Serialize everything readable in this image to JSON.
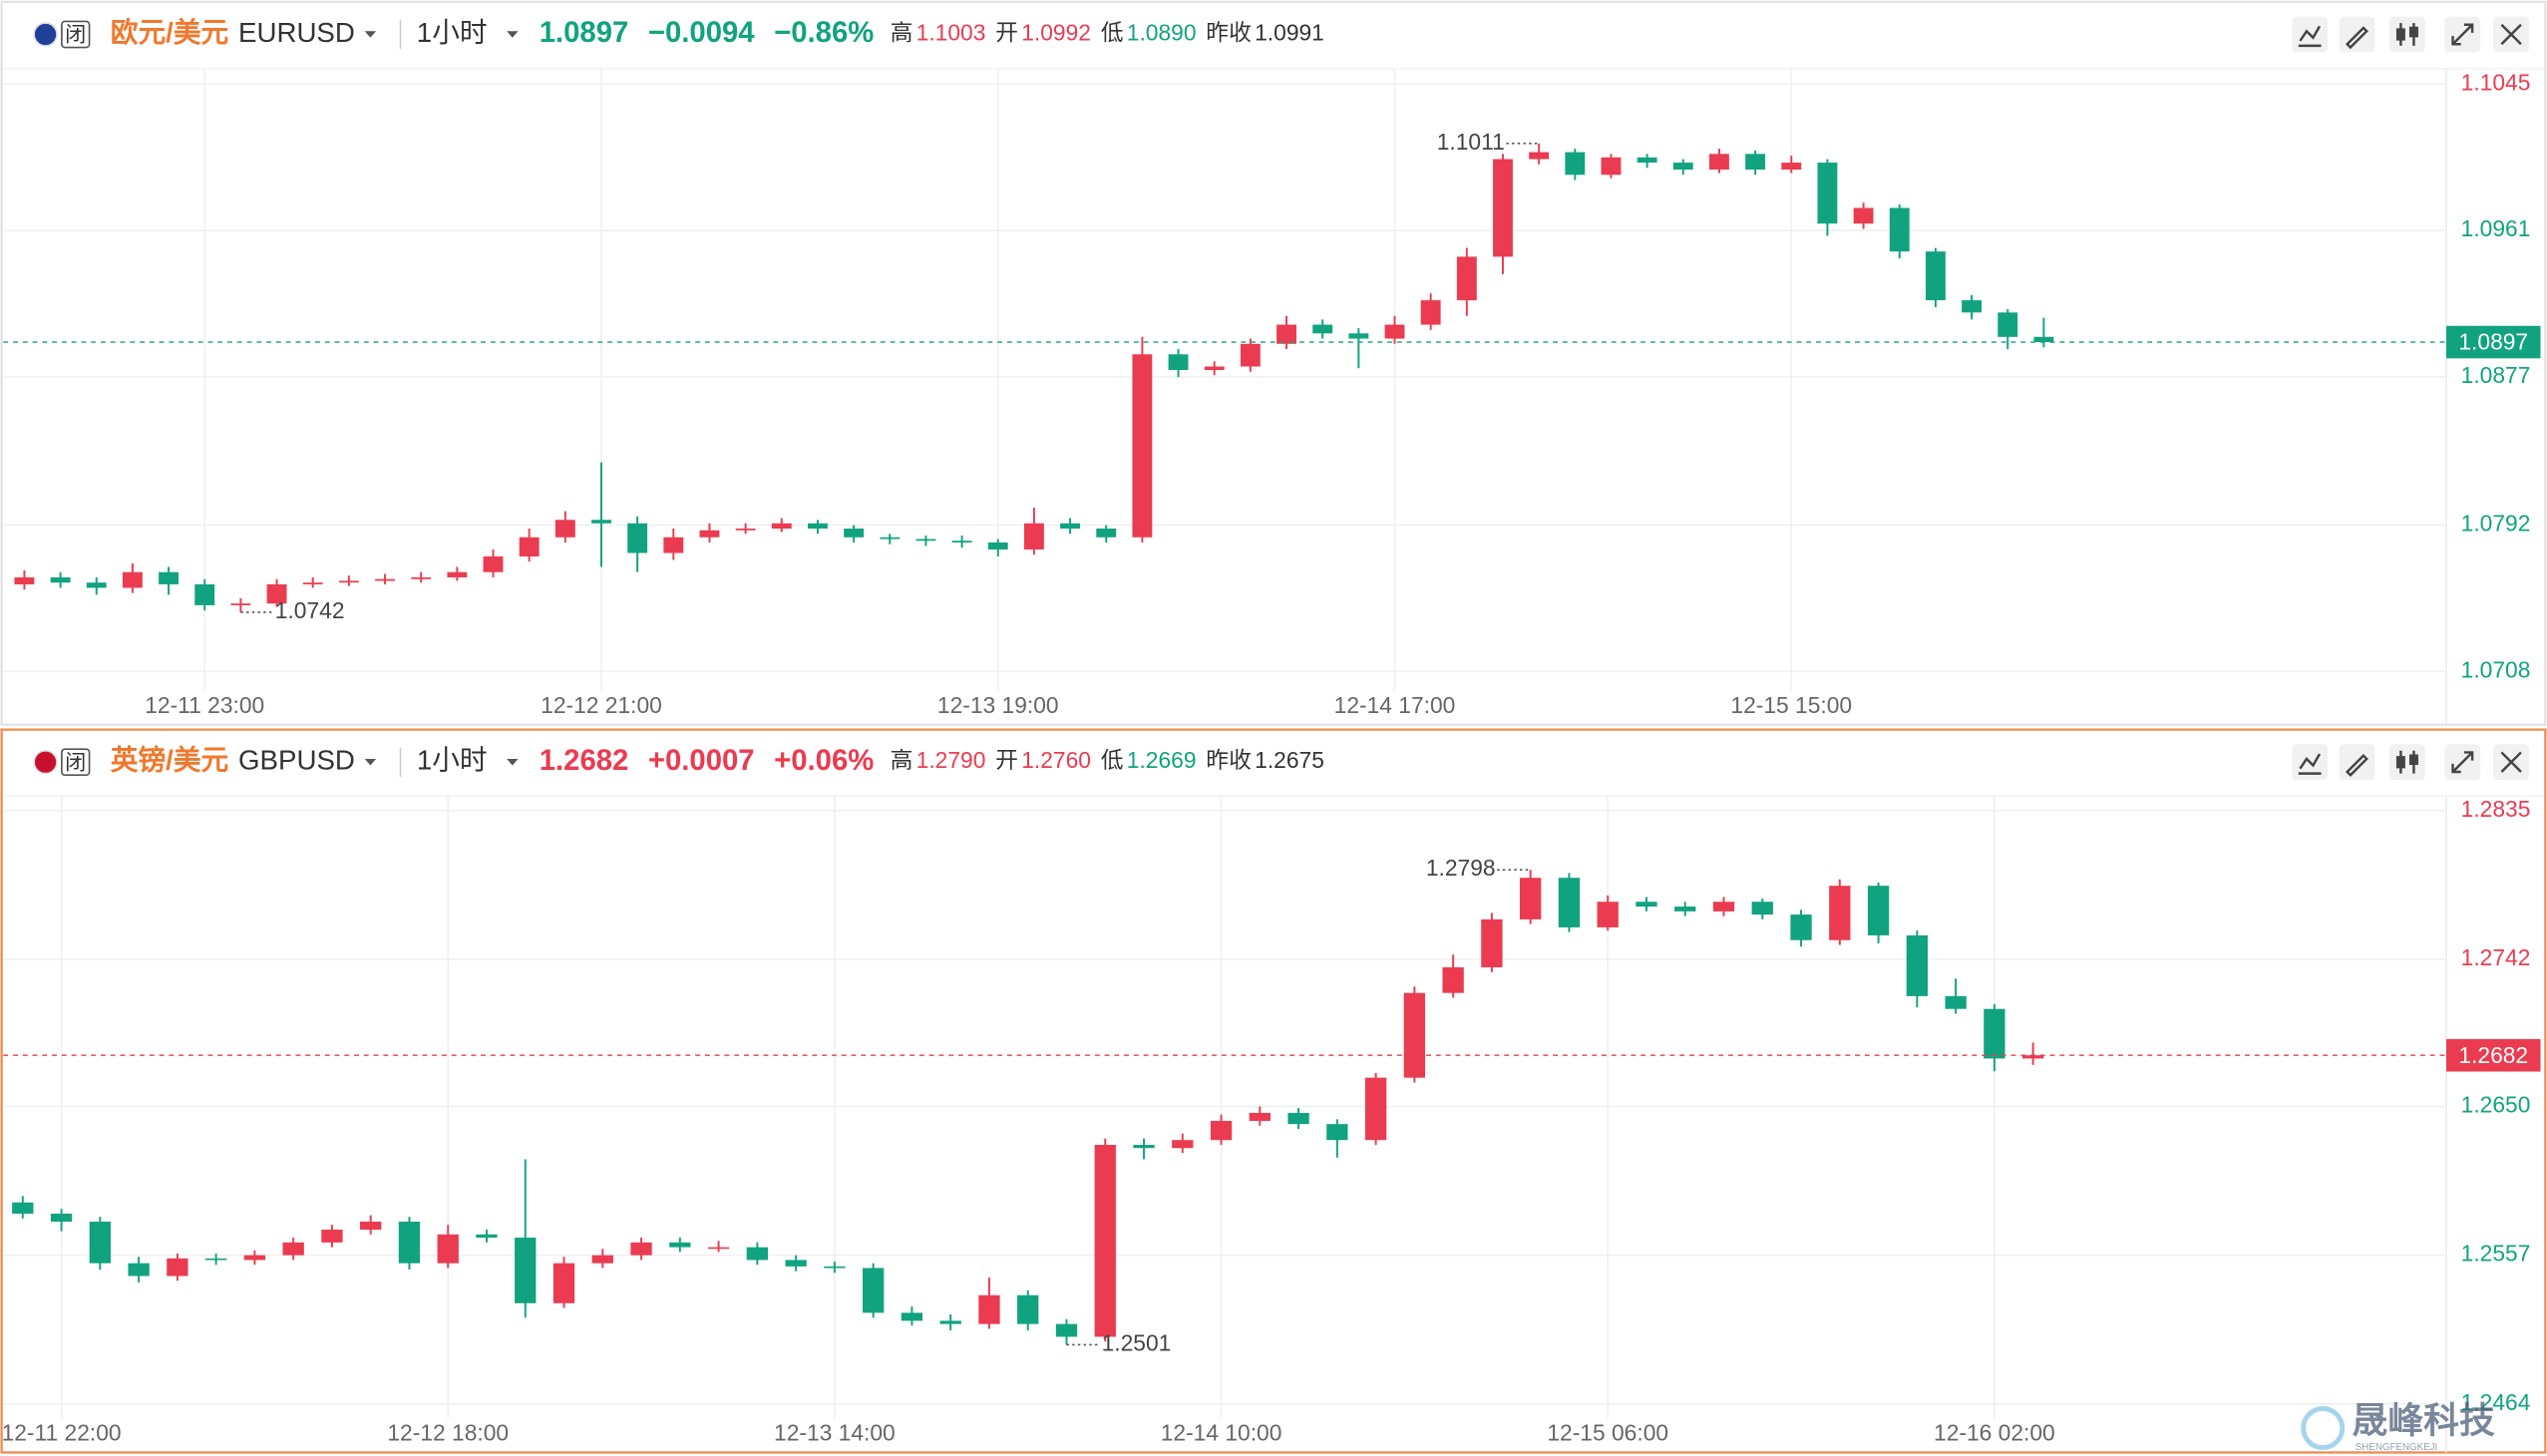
{
  "chart_data": [
    {
      "type": "candlestick",
      "status": "闭",
      "name": "欧元/美元",
      "symbol": "EURUSD",
      "interval": "1小时",
      "change": "−0.0094",
      "change_pct": "−0.86%",
      "trend_color": "#11a37f",
      "up_color": "#eb3b50",
      "down_color": "#11a37f",
      "grid": true,
      "stats": [
        {
          "label": "高",
          "value": 1.1003,
          "color": "#eb3b50"
        },
        {
          "label": "开",
          "value": 1.0992,
          "color": "#eb3b50"
        },
        {
          "label": "低",
          "value": {
            "value": 1.089,
            "label": "1.0890"
          },
          "color": "#11a37f"
        },
        {
          "label": "昨收",
          "value": 1.0991,
          "color": "#333333"
        }
      ],
      "categories": [
        null,
        null,
        null,
        null,
        null,
        "12-11 23:00",
        null,
        null,
        null,
        null,
        null,
        null,
        null,
        null,
        null,
        null,
        "12-12 21:00",
        null,
        null,
        null,
        null,
        null,
        null,
        null,
        null,
        null,
        null,
        "12-13 19:00",
        null,
        null,
        null,
        null,
        null,
        null,
        null,
        null,
        null,
        null,
        "12-14 17:00",
        null,
        null,
        null,
        null,
        null,
        null,
        null,
        null,
        null,
        null,
        "12-15 15:00",
        null,
        null,
        null,
        null,
        null,
        null,
        null
      ],
      "open": [
        1.0758,
        1.0762,
        1.0759,
        1.0756,
        1.0765,
        1.0758,
        1.0746,
        1.0747,
        1.0758,
        1.0759,
        1.076,
        1.0761,
        1.0762,
        1.0765,
        1.0774,
        1.0785,
        1.0795,
        1.0793,
        1.0776,
        1.0785,
        1.0789,
        1.079,
        1.0793,
        1.079,
        1.0785,
        1.0784,
        1.0783,
        1.0782,
        1.0778,
        1.0793,
        1.079,
        1.0785,
        1.089,
        1.0881,
        1.0883,
        1.0896,
        1.0907,
        1.0902,
        1.0899,
        1.0907,
        1.0921,
        1.0946,
        1.1002,
        1.1006,
        1.0993,
        1.1003,
        1.1,
        1.0996,
        1.1005,
        1.0996,
        1.1,
        1.0965,
        1.0974,
        1.0949,
        1.0921,
        1.0914,
        1.09
      ],
      "high": [
        1.0766,
        1.0765,
        1.0762,
        1.077,
        1.0768,
        1.0761,
        1.075,
        1.0761,
        1.0762,
        1.0763,
        1.0764,
        1.0765,
        1.0768,
        1.0778,
        1.079,
        1.08,
        1.0828,
        1.0797,
        1.079,
        1.0793,
        1.0793,
        1.0796,
        1.0795,
        1.0792,
        1.0787,
        1.0786,
        1.0786,
        1.0784,
        1.0802,
        1.0796,
        1.0792,
        1.09,
        1.0893,
        1.0886,
        1.0899,
        1.0912,
        1.091,
        1.0905,
        1.0912,
        1.0925,
        1.0951,
        1.1005,
        1.1011,
        1.1008,
        1.1005,
        1.1005,
        1.1002,
        1.1008,
        1.1007,
        1.1004,
        1.1002,
        1.0977,
        1.0976,
        1.0951,
        1.0924,
        1.0916,
        1.0911
      ],
      "low": [
        1.0755,
        1.0756,
        1.0752,
        1.0753,
        1.0752,
        1.0743,
        1.0742,
        1.0745,
        1.0756,
        1.0757,
        1.0758,
        1.0759,
        1.076,
        1.0762,
        1.0771,
        1.0782,
        1.0768,
        1.0765,
        1.0772,
        1.0782,
        1.0787,
        1.0788,
        1.0787,
        1.0782,
        1.0781,
        1.078,
        1.0779,
        1.0774,
        1.0775,
        1.0787,
        1.0782,
        1.0782,
        1.0877,
        1.0878,
        1.088,
        1.0893,
        1.0899,
        1.0882,
        1.0896,
        1.0904,
        1.0912,
        1.0936,
        1.0999,
        1.099,
        1.0991,
        1.0997,
        1.0993,
        1.0994,
        1.0993,
        1.0994,
        1.0958,
        1.0962,
        1.0945,
        1.0917,
        1.091,
        1.0893,
        1.0894
      ],
      "close": [
        1.0762,
        1.0759,
        1.0756,
        1.0765,
        1.0758,
        1.0746,
        1.0747,
        1.0758,
        1.0759,
        1.076,
        1.0761,
        1.0762,
        1.0765,
        1.0774,
        1.0785,
        1.0795,
        1.0793,
        1.0776,
        1.0785,
        1.0789,
        1.079,
        1.0793,
        1.079,
        1.0785,
        1.0784,
        1.0783,
        1.0782,
        1.0778,
        1.0793,
        1.079,
        1.0785,
        1.089,
        1.0881,
        1.0883,
        1.0896,
        1.0907,
        1.0902,
        1.0899,
        1.0907,
        1.0921,
        1.0946,
        1.1002,
        1.1006,
        1.0993,
        1.1003,
        1.1,
        1.0996,
        1.1005,
        1.0996,
        1.1,
        1.0965,
        1.0974,
        1.0949,
        1.0921,
        1.0914,
        1.09,
        1.0897
      ],
      "ylim": [
        1.0697,
        1.1054
      ],
      "yticks": [
        1.0708,
        1.0792,
        1.0877,
        1.0961,
        1.1045
      ]
    },
    {
      "type": "candlestick",
      "status": "闭",
      "name": "英镑/美元",
      "symbol": "GBPUSD",
      "interval": "1小时",
      "change": "+0.0007",
      "change_pct": "+0.06%",
      "trend_color": "#eb3b50",
      "up_color": "#eb3b50",
      "down_color": "#11a37f",
      "grid": true,
      "stats": [
        {
          "label": "高",
          "value": {
            "value": 1.279,
            "label": "1.2790"
          },
          "color": "#eb3b50"
        },
        {
          "label": "开",
          "value": {
            "value": 1.276,
            "label": "1.2760"
          },
          "color": "#eb3b50"
        },
        {
          "label": "低",
          "value": 1.2669,
          "color": "#11a37f"
        },
        {
          "label": "昨收",
          "value": 1.2675,
          "color": "#333333"
        }
      ],
      "categories": [
        null,
        "12-11 22:00",
        null,
        null,
        null,
        null,
        null,
        null,
        null,
        null,
        null,
        "12-12 18:00",
        null,
        null,
        null,
        null,
        null,
        null,
        null,
        null,
        null,
        "12-13 14:00",
        null,
        null,
        null,
        null,
        null,
        null,
        null,
        null,
        null,
        "12-14 10:00",
        null,
        null,
        null,
        null,
        null,
        null,
        null,
        null,
        null,
        "12-15 06:00",
        null,
        null,
        null,
        null,
        null,
        null,
        null,
        null,
        null,
        "12-16 02:00",
        null
      ],
      "open": [
        1.259,
        1.2583,
        1.2578,
        1.2552,
        1.2544,
        1.2555,
        1.2554,
        1.2557,
        1.2565,
        1.2573,
        1.2578,
        1.2552,
        1.257,
        1.2568,
        1.2527,
        1.2552,
        1.2557,
        1.2565,
        1.2562,
        1.2562,
        1.2554,
        1.255,
        1.2549,
        1.2521,
        1.2516,
        1.2514,
        1.2532,
        1.2514,
        1.2506,
        1.2626,
        1.2624,
        1.2629,
        1.2641,
        1.2646,
        1.2639,
        1.2629,
        1.2668,
        1.2721,
        1.2737,
        1.2767,
        1.2793,
        1.2762,
        1.2778,
        1.2775,
        1.2772,
        1.2778,
        1.277,
        1.2754,
        1.2788,
        1.2757,
        1.2719,
        1.2711,
        1.268
      ],
      "high": [
        1.2594,
        1.2586,
        1.2581,
        1.2556,
        1.2558,
        1.2558,
        1.256,
        1.2568,
        1.2576,
        1.2582,
        1.2581,
        1.2576,
        1.2573,
        1.2617,
        1.2556,
        1.2561,
        1.2568,
        1.2568,
        1.2566,
        1.2565,
        1.2557,
        1.2553,
        1.2552,
        1.2525,
        1.252,
        1.2543,
        1.2535,
        1.2517,
        1.263,
        1.263,
        1.2633,
        1.2645,
        1.265,
        1.2649,
        1.2642,
        1.2671,
        1.2725,
        1.2745,
        1.2771,
        1.2798,
        1.2796,
        1.2782,
        1.2781,
        1.2778,
        1.2781,
        1.278,
        1.2773,
        1.2792,
        1.279,
        1.276,
        1.273,
        1.2714,
        1.269
      ],
      "low": [
        1.258,
        1.2572,
        1.2548,
        1.254,
        1.2541,
        1.2551,
        1.2551,
        1.2554,
        1.2562,
        1.257,
        1.2548,
        1.2549,
        1.2565,
        1.2518,
        1.2524,
        1.2549,
        1.2554,
        1.2559,
        1.2559,
        1.2551,
        1.2547,
        1.2546,
        1.2518,
        1.2513,
        1.251,
        1.2511,
        1.251,
        1.2501,
        1.2503,
        1.2617,
        1.2621,
        1.2626,
        1.2638,
        1.2636,
        1.2618,
        1.2626,
        1.2665,
        1.2718,
        1.2734,
        1.2764,
        1.2759,
        1.276,
        1.2772,
        1.2769,
        1.2769,
        1.2767,
        1.275,
        1.2751,
        1.2752,
        1.2712,
        1.2708,
        1.2672,
        1.2676
      ],
      "close": [
        1.2583,
        1.2578,
        1.2552,
        1.2544,
        1.2555,
        1.2554,
        1.2557,
        1.2565,
        1.2573,
        1.2578,
        1.2552,
        1.257,
        1.2568,
        1.2527,
        1.2552,
        1.2557,
        1.2565,
        1.2562,
        1.2562,
        1.2554,
        1.255,
        1.2549,
        1.2521,
        1.2516,
        1.2514,
        1.2532,
        1.2514,
        1.2506,
        1.2626,
        1.2624,
        1.2629,
        1.2641,
        1.2646,
        1.2639,
        1.2629,
        1.2668,
        1.2721,
        1.2737,
        1.2767,
        1.2793,
        1.2762,
        1.2778,
        1.2775,
        1.2772,
        1.2778,
        1.277,
        1.2754,
        1.2788,
        1.2757,
        1.2719,
        1.2711,
        1.268,
        1.2682
      ],
      "ylim": [
        1.2455,
        1.2844
      ],
      "yticks": [
        1.2464,
        1.2557,
        {
          "value": 1.265,
          "label": "1.2650"
        },
        1.2742,
        1.2835
      ]
    }
  ],
  "watermark": {
    "name": "晟峰科技",
    "latin": "SHENGFENGKEJI"
  }
}
